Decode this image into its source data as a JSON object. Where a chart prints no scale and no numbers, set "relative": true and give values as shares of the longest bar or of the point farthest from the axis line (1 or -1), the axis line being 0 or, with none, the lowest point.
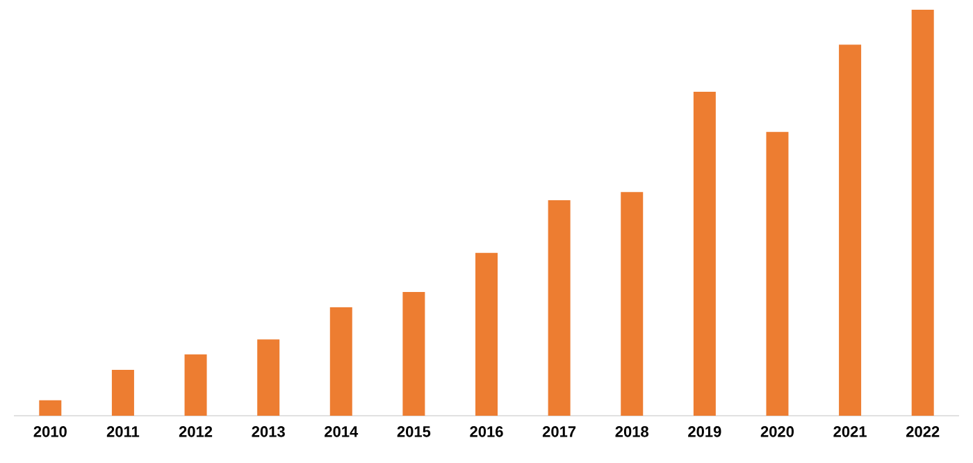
{
  "chart_data": {
    "type": "bar",
    "relative": true,
    "color": "#ed7d31",
    "categories": [
      "2010",
      "2011",
      "2012",
      "2013",
      "2014",
      "2015",
      "2016",
      "2017",
      "2018",
      "2019",
      "2020",
      "2021",
      "2022"
    ],
    "values": [
      0.038,
      0.113,
      0.151,
      0.188,
      0.267,
      0.305,
      0.401,
      0.531,
      0.551,
      0.798,
      0.699,
      0.914,
      1
    ]
  }
}
